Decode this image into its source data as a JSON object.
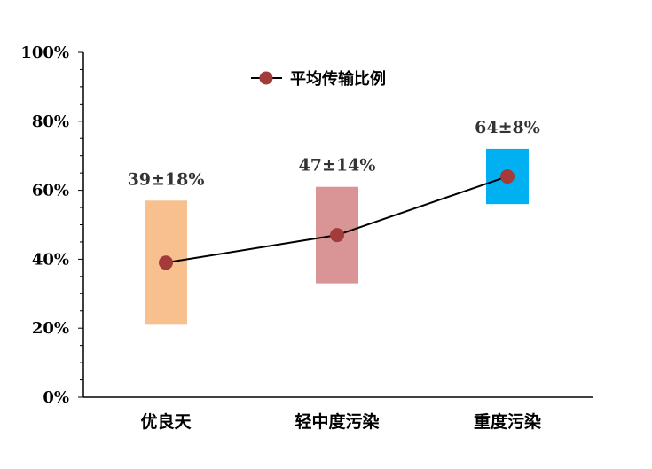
{
  "chart_data": {
    "type": "line",
    "categories": [
      "优良天",
      "轻中度污染",
      "重度污染"
    ],
    "y_ticks": [
      "0%",
      "20%",
      "40%",
      "60%",
      "80%",
      "100%"
    ],
    "ylim": [
      0,
      100
    ],
    "grid": false,
    "legend_position": "top-center",
    "series": [
      {
        "name": "平均传输比例",
        "values": [
          39,
          47,
          64
        ],
        "color": "#a33b3b",
        "marker": "circle"
      }
    ],
    "ranges": [
      {
        "low": 21,
        "high": 57,
        "color": "#f8c08f"
      },
      {
        "low": 33,
        "high": 61,
        "color": "#d99595"
      },
      {
        "low": 56,
        "high": 72,
        "color": "#00b0f0"
      }
    ],
    "data_labels": [
      "39±18%",
      "47±14%",
      "64±8%"
    ]
  }
}
